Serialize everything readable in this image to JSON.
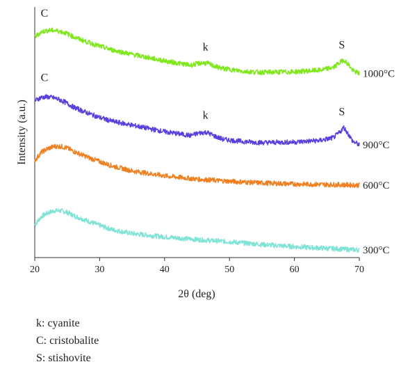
{
  "chart_data": {
    "type": "line",
    "xlabel": "2θ (deg)",
    "ylabel": "Intensity (a.u.)",
    "xlim": [
      20,
      70
    ],
    "xticks": [
      20,
      30,
      40,
      50,
      60,
      70
    ],
    "yticks": "none",
    "grid": false,
    "legend_placement": "below",
    "series": [
      {
        "name": "300°C",
        "color": "#7fe3d6",
        "x": [
          20,
          21,
          22,
          23,
          24,
          25,
          26,
          28,
          30,
          32,
          35,
          40,
          45,
          50,
          55,
          60,
          65,
          70
        ],
        "y": [
          0.6,
          0.75,
          0.82,
          0.86,
          0.86,
          0.83,
          0.77,
          0.68,
          0.59,
          0.51,
          0.44,
          0.38,
          0.33,
          0.29,
          0.24,
          0.2,
          0.17,
          0.14
        ]
      },
      {
        "name": "600°C",
        "color": "#f07f1f",
        "x": [
          20,
          21,
          22,
          23,
          24,
          25,
          26,
          28,
          30,
          32,
          35,
          40,
          45,
          50,
          55,
          60,
          65,
          70
        ],
        "y": [
          1.78,
          1.93,
          2.0,
          2.04,
          2.04,
          2.01,
          1.95,
          1.85,
          1.76,
          1.68,
          1.59,
          1.5,
          1.44,
          1.4,
          1.37,
          1.35,
          1.34,
          1.33
        ]
      },
      {
        "name": "900°C",
        "color": "#5a3fe0",
        "x": [
          20,
          21,
          22,
          23,
          24,
          25,
          26,
          28,
          30,
          32,
          35,
          40,
          44,
          45.5,
          46.5,
          47.5,
          49,
          52,
          55,
          60,
          64,
          66,
          67,
          67.6,
          68.3,
          69,
          70
        ],
        "y": [
          2.88,
          2.94,
          2.95,
          2.93,
          2.89,
          2.83,
          2.76,
          2.66,
          2.57,
          2.5,
          2.43,
          2.31,
          2.24,
          2.29,
          2.3,
          2.24,
          2.17,
          2.13,
          2.11,
          2.12,
          2.15,
          2.2,
          2.3,
          2.39,
          2.27,
          2.13,
          2.07
        ]
      },
      {
        "name": "1000°C",
        "color": "#7ee81c",
        "x": [
          20,
          21,
          22,
          23,
          24,
          25,
          26,
          28,
          30,
          32,
          35,
          40,
          44,
          45.5,
          46.5,
          47.5,
          49,
          52,
          55,
          60,
          64,
          66,
          67,
          67.6,
          68.3,
          69,
          70
        ],
        "y": [
          4.05,
          4.14,
          4.17,
          4.17,
          4.15,
          4.11,
          4.05,
          3.96,
          3.88,
          3.81,
          3.73,
          3.61,
          3.53,
          3.57,
          3.57,
          3.52,
          3.47,
          3.42,
          3.4,
          3.41,
          3.44,
          3.49,
          3.58,
          3.63,
          3.55,
          3.43,
          3.38
        ]
      }
    ],
    "annotations": [
      {
        "text": "C",
        "x": 21.5,
        "y": 4.42
      },
      {
        "text": "k",
        "x": 46.3,
        "y": 3.8
      },
      {
        "text": "S",
        "x": 67.3,
        "y": 3.84
      },
      {
        "text": "C",
        "x": 21.5,
        "y": 3.24
      },
      {
        "text": "k",
        "x": 46.3,
        "y": 2.55
      },
      {
        "text": "S",
        "x": 67.3,
        "y": 2.61
      }
    ]
  },
  "legend": [
    "k: cyanite",
    "C: cristobalite",
    "S: stishovite"
  ]
}
